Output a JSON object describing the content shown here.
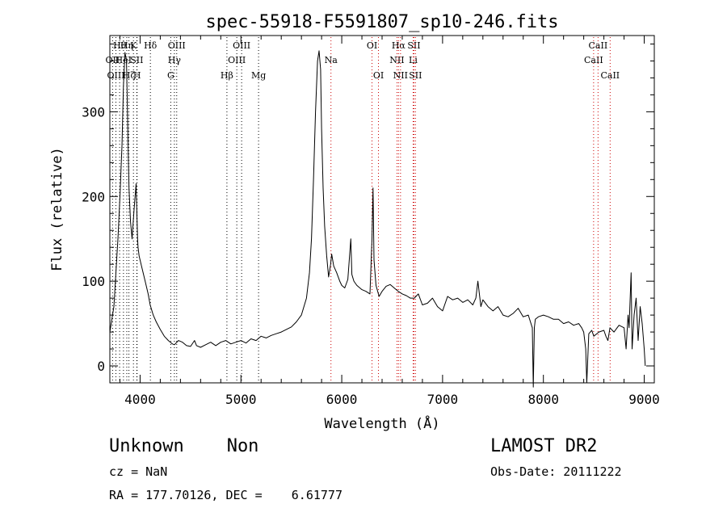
{
  "chart_data": {
    "type": "line",
    "title": "spec-55918-F5591807_sp10-246.fits",
    "xlabel": "Wavelength (Å)",
    "ylabel": "Flux (relative)",
    "xlim": [
      3700,
      9100
    ],
    "ylim": [
      -20,
      390
    ],
    "x_ticks": [
      4000,
      5000,
      6000,
      7000,
      8000,
      9000
    ],
    "y_ticks": [
      0,
      100,
      200,
      300
    ],
    "grid": false,
    "line_color": "#000000",
    "marker_color_blue": "#000000",
    "marker_color_red": "#cc0000",
    "series": [
      {
        "x": [
          3700,
          3740,
          3780,
          3800,
          3820,
          3835,
          3850,
          3865,
          3875,
          3890,
          3905,
          3920,
          3940,
          3960,
          3975,
          3980,
          3990,
          4000,
          4020,
          4050,
          4080,
          4100,
          4130,
          4160,
          4200,
          4240,
          4280,
          4300,
          4320,
          4340,
          4380,
          4420,
          4460,
          4500,
          4540,
          4560,
          4600,
          4650,
          4700,
          4750,
          4800,
          4850,
          4900,
          4950,
          5000,
          5050,
          5100,
          5150,
          5200,
          5250,
          5300,
          5350,
          5400,
          5450,
          5500,
          5550,
          5600,
          5650,
          5680,
          5700,
          5720,
          5740,
          5760,
          5775,
          5790,
          5800,
          5815,
          5830,
          5850,
          5870,
          5890,
          5900,
          5920,
          5950,
          5980,
          6000,
          6030,
          6060,
          6090,
          6100,
          6120,
          6150,
          6180,
          6200,
          6240,
          6280,
          6300,
          6310,
          6320,
          6340,
          6370,
          6400,
          6440,
          6480,
          6500,
          6520,
          6560,
          6600,
          6640,
          6680,
          6720,
          6760,
          6800,
          6850,
          6900,
          6950,
          7000,
          7050,
          7100,
          7150,
          7200,
          7250,
          7300,
          7330,
          7350,
          7380,
          7400,
          7450,
          7500,
          7550,
          7600,
          7650,
          7700,
          7750,
          7800,
          7850,
          7890,
          7900,
          7910,
          7920,
          7950,
          8000,
          8050,
          8100,
          8150,
          8200,
          8250,
          8300,
          8350,
          8380,
          8400,
          8420,
          8430,
          8450,
          8480,
          8500,
          8550,
          8600,
          8620,
          8640,
          8660,
          8700,
          8750,
          8800,
          8820,
          8840,
          8850,
          8870,
          8880,
          8900,
          8920,
          8940,
          8960,
          8980,
          9000,
          9010
        ],
        "y": [
          40,
          70,
          150,
          200,
          260,
          330,
          370,
          360,
          300,
          210,
          170,
          150,
          185,
          215,
          150,
          140,
          130,
          125,
          115,
          100,
          85,
          72,
          60,
          52,
          43,
          35,
          30,
          28,
          26,
          25,
          30,
          28,
          24,
          23,
          30,
          24,
          22,
          25,
          28,
          24,
          28,
          30,
          26,
          28,
          30,
          27,
          32,
          30,
          35,
          33,
          36,
          38,
          40,
          43,
          46,
          52,
          60,
          80,
          110,
          150,
          220,
          300,
          360,
          372,
          350,
          280,
          210,
          165,
          130,
          105,
          120,
          132,
          118,
          110,
          100,
          95,
          92,
          102,
          150,
          108,
          100,
          95,
          92,
          90,
          88,
          85,
          150,
          210,
          125,
          95,
          82,
          88,
          94,
          96,
          94,
          92,
          88,
          85,
          83,
          80,
          80,
          85,
          72,
          74,
          80,
          70,
          65,
          82,
          78,
          80,
          75,
          78,
          72,
          80,
          100,
          70,
          78,
          70,
          65,
          70,
          60,
          58,
          62,
          68,
          58,
          60,
          45,
          -25,
          45,
          55,
          58,
          60,
          58,
          55,
          55,
          50,
          52,
          48,
          50,
          45,
          40,
          20,
          -20,
          38,
          42,
          35,
          40,
          42,
          35,
          30,
          45,
          40,
          48,
          45,
          20,
          60,
          45,
          110,
          20,
          60,
          80,
          30,
          70,
          50,
          20,
          0
        ]
      }
    ],
    "line_markers": {
      "blue": [
        {
          "x": 3727,
          "row": 2,
          "label": "OII"
        },
        {
          "x": 3760,
          "row": 3,
          "label": "OIII"
        },
        {
          "x": 3797,
          "row": 1,
          "label": "Hθ"
        },
        {
          "x": 3835,
          "row": 2,
          "label": "HeI"
        },
        {
          "x": 3868,
          "row": 1,
          "label": "Hη"
        },
        {
          "x": 3889,
          "row": 3,
          "label": "Hζ"
        },
        {
          "x": 3934,
          "row": 1,
          "label": "K"
        },
        {
          "x": 3967,
          "row": 2,
          "label": "SII"
        },
        {
          "x": 3970,
          "row": 3,
          "label": "H"
        },
        {
          "x": 4102,
          "row": 1,
          "label": "Hδ"
        },
        {
          "x": 4304,
          "row": 3,
          "label": "G"
        },
        {
          "x": 4340,
          "row": 2,
          "label": "Hγ"
        },
        {
          "x": 4363,
          "row": 1,
          "label": "OIII"
        },
        {
          "x": 4861,
          "row": 3,
          "label": "Hβ"
        },
        {
          "x": 4959,
          "row": 2,
          "label": "OIII"
        },
        {
          "x": 5007,
          "row": 1,
          "label": "OIII"
        },
        {
          "x": 5175,
          "row": 3,
          "label": "Mg"
        }
      ],
      "red": [
        {
          "x": 5893,
          "row": 2,
          "label": "Na"
        },
        {
          "x": 6300,
          "row": 1,
          "label": "OI"
        },
        {
          "x": 6364,
          "row": 3,
          "label": "OI"
        },
        {
          "x": 6548,
          "row": 2,
          "label": "NII"
        },
        {
          "x": 6563,
          "row": 1,
          "label": "Hα"
        },
        {
          "x": 6583,
          "row": 3,
          "label": "NII"
        },
        {
          "x": 6708,
          "row": 2,
          "label": "Li"
        },
        {
          "x": 6716,
          "row": 1,
          "label": "SII"
        },
        {
          "x": 6731,
          "row": 3,
          "label": "SII"
        },
        {
          "x": 8498,
          "row": 2,
          "label": "CaII"
        },
        {
          "x": 8542,
          "row": 1,
          "label": "CaII"
        },
        {
          "x": 8662,
          "row": 3,
          "label": "CaII"
        }
      ]
    }
  },
  "info": {
    "classification": "Unknown    Non",
    "survey": "LAMOST DR2",
    "redshift": "cz = NaN",
    "obs_date": "Obs-Date: 20111222",
    "coords": "RA = 177.70126, DEC =    6.61777"
  }
}
